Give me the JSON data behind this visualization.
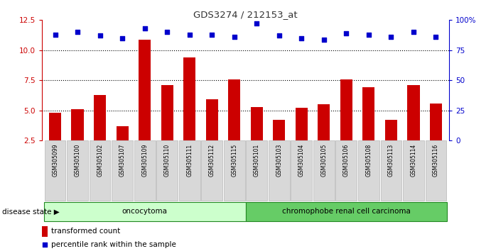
{
  "title": "GDS3274 / 212153_at",
  "samples": [
    "GSM305099",
    "GSM305100",
    "GSM305102",
    "GSM305107",
    "GSM305109",
    "GSM305110",
    "GSM305111",
    "GSM305112",
    "GSM305115",
    "GSM305101",
    "GSM305103",
    "GSM305104",
    "GSM305105",
    "GSM305106",
    "GSM305108",
    "GSM305113",
    "GSM305114",
    "GSM305116"
  ],
  "bar_values": [
    4.8,
    5.1,
    6.3,
    3.7,
    10.9,
    7.1,
    9.4,
    5.9,
    7.6,
    5.3,
    4.2,
    5.2,
    5.5,
    7.6,
    6.9,
    4.2,
    7.1,
    5.6
  ],
  "percentile_values": [
    88,
    90,
    87,
    85,
    93,
    90,
    88,
    88,
    86,
    97,
    87,
    85,
    84,
    89,
    88,
    86,
    90,
    86
  ],
  "groups": [
    {
      "label": "oncocytoma",
      "start": 0,
      "end": 9
    },
    {
      "label": "chromophobe renal cell carcinoma",
      "start": 9,
      "end": 18
    }
  ],
  "ylim_left": [
    2.5,
    12.5
  ],
  "ylim_right": [
    0,
    100
  ],
  "yticks_left": [
    2.5,
    5.0,
    7.5,
    10.0,
    12.5
  ],
  "yticks_right": [
    0,
    25,
    50,
    75,
    100
  ],
  "bar_color": "#cc0000",
  "scatter_color": "#0000cc",
  "group_color_1": "#ccffcc",
  "group_color_2": "#66cc66",
  "legend_bar_label": "transformed count",
  "legend_scatter_label": "percentile rank within the sample",
  "disease_state_label": "disease state",
  "title_color": "#333333",
  "left_axis_color": "#cc0000",
  "right_axis_color": "#0000cc",
  "grid_color": "black",
  "label_box_color": "#d8d8d8",
  "group_border_color": "#228822"
}
